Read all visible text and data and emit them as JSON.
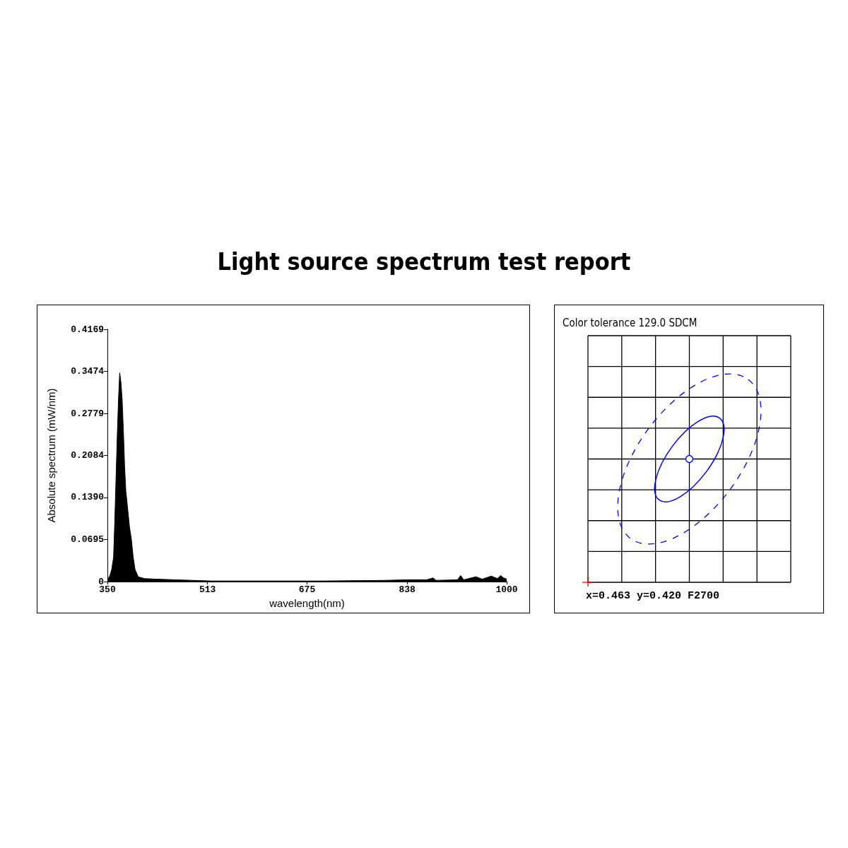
{
  "chart_data": [
    {
      "type": "area",
      "title": "Light source spectrum test report",
      "xlabel": "wavelength(nm)",
      "ylabel": "Absolute spectrum (mW/nm)",
      "color": "#000000",
      "x": [
        350,
        354,
        357,
        360,
        362,
        364,
        366,
        368,
        370,
        372,
        374,
        376,
        378,
        380,
        383,
        386,
        389,
        392,
        395,
        400,
        410,
        430,
        460,
        490,
        520,
        600,
        700,
        800,
        840,
        870,
        880,
        885,
        920,
        925,
        930,
        950,
        960,
        975,
        985,
        990,
        995,
        1000
      ],
      "values": [
        0.002,
        0.01,
        0.02,
        0.04,
        0.1,
        0.17,
        0.24,
        0.3,
        0.345,
        0.33,
        0.3,
        0.25,
        0.19,
        0.15,
        0.12,
        0.09,
        0.07,
        0.04,
        0.02,
        0.008,
        0.005,
        0.004,
        0.003,
        0.002,
        0.001,
        0.001,
        0.001,
        0.002,
        0.003,
        0.003,
        0.006,
        0.002,
        0.003,
        0.01,
        0.003,
        0.008,
        0.004,
        0.009,
        0.005,
        0.01,
        0.006,
        0.004
      ],
      "xlim": [
        350,
        1000
      ],
      "xticks": [
        350,
        513,
        675,
        838,
        1000
      ],
      "ylim": [
        0,
        0.4169
      ],
      "yticks": [
        0,
        0.0695,
        {
          "value": 0.139,
          "label": "0.1390"
        },
        0.2084,
        0.2779,
        0.3474,
        0.4169
      ]
    },
    {
      "type": "other",
      "title": "Color tolerance 129.0 SDCM",
      "annotations": [
        "x=0.463 y=0.420 F2700"
      ]
    }
  ]
}
